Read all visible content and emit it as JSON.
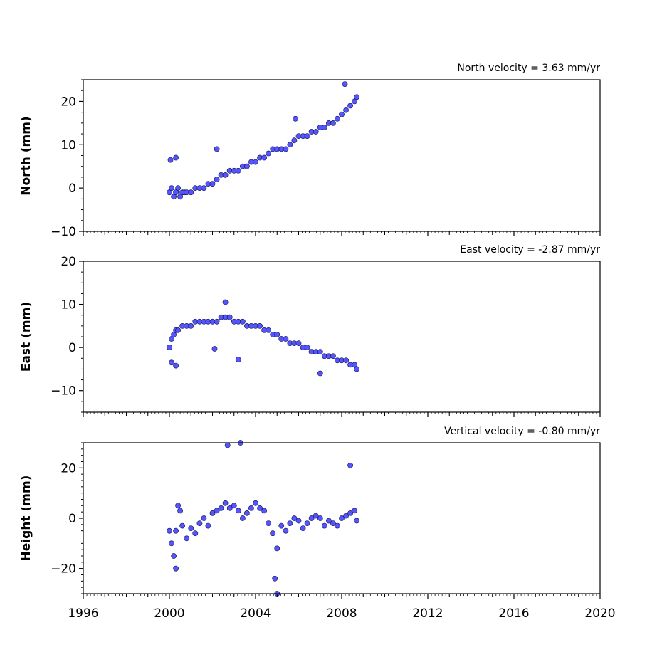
{
  "chart_data": [
    {
      "type": "scatter",
      "title": "North velocity = 3.63 mm/yr",
      "ylabel": "North (mm)",
      "xlabel": "",
      "xlim": [
        1996,
        2020
      ],
      "ylim": [
        -10,
        25
      ],
      "x_ticks": [
        1996,
        2000,
        2004,
        2008,
        2012,
        2016,
        2020
      ],
      "y_ticks": [
        -10,
        0,
        10,
        20
      ],
      "point_color": "#5555ff",
      "series": [
        {
          "x": [
            2000.0,
            2000.1,
            2000.2,
            2000.3,
            2000.4,
            2000.5,
            2000.6,
            2000.7,
            2000.8,
            2001.0,
            2001.2,
            2001.4,
            2001.6,
            2001.8,
            2002.0,
            2002.2,
            2002.4,
            2002.6,
            2002.8,
            2003.0,
            2003.2,
            2003.4,
            2003.6,
            2003.8,
            2004.0,
            2004.2,
            2004.4,
            2004.6,
            2004.8,
            2005.0,
            2005.2,
            2005.4,
            2005.6,
            2005.8,
            2006.0,
            2006.2,
            2006.4,
            2006.6,
            2006.8,
            2007.0,
            2007.2,
            2007.4,
            2007.6,
            2007.8,
            2008.0,
            2008.2,
            2008.4,
            2008.6,
            2008.7,
            2000.05,
            2000.3,
            2002.2,
            2008.15,
            2005.85
          ],
          "y": [
            -1,
            0,
            -2,
            -1,
            0,
            -2,
            -1,
            -1,
            -1,
            -1,
            0,
            0,
            0,
            1,
            1,
            2,
            3,
            3,
            4,
            4,
            4,
            5,
            5,
            6,
            6,
            7,
            7,
            8,
            9,
            9,
            9,
            9,
            10,
            11,
            12,
            12,
            12,
            13,
            13,
            14,
            14,
            15,
            15,
            16,
            17,
            18,
            19,
            20,
            21,
            6.5,
            7,
            9,
            24,
            16
          ]
        }
      ]
    },
    {
      "type": "scatter",
      "title": "East velocity = -2.87 mm/yr",
      "ylabel": "East (mm)",
      "xlabel": "",
      "xlim": [
        1996,
        2020
      ],
      "ylim": [
        -15,
        20
      ],
      "x_ticks": [
        1996,
        2000,
        2004,
        2008,
        2012,
        2016,
        2020
      ],
      "y_ticks": [
        -10,
        0,
        10,
        20
      ],
      "point_color": "#5555ff",
      "series": [
        {
          "x": [
            2000.0,
            2000.1,
            2000.2,
            2000.3,
            2000.4,
            2000.6,
            2000.8,
            2001.0,
            2001.2,
            2001.4,
            2001.6,
            2001.8,
            2002.0,
            2002.2,
            2002.4,
            2002.6,
            2002.8,
            2003.0,
            2003.2,
            2003.4,
            2003.6,
            2003.8,
            2004.0,
            2004.2,
            2004.4,
            2004.6,
            2004.8,
            2005.0,
            2005.2,
            2005.4,
            2005.6,
            2005.8,
            2006.0,
            2006.2,
            2006.4,
            2006.6,
            2006.8,
            2007.0,
            2007.2,
            2007.4,
            2007.6,
            2007.8,
            2008.0,
            2008.2,
            2008.4,
            2008.6,
            2008.7,
            2000.1,
            2000.3,
            2002.1,
            2003.2,
            2007.0,
            2002.6
          ],
          "y": [
            0,
            2,
            3,
            4,
            4,
            5,
            5,
            5,
            6,
            6,
            6,
            6,
            6,
            6,
            7,
            7,
            7,
            6,
            6,
            6,
            5,
            5,
            5,
            5,
            4,
            4,
            3,
            3,
            2,
            2,
            1,
            1,
            1,
            0,
            0,
            -1,
            -1,
            -1,
            -2,
            -2,
            -2,
            -3,
            -3,
            -3,
            -4,
            -4,
            -5,
            -3.5,
            -4.2,
            -0.3,
            -2.8,
            -6,
            10.5
          ]
        }
      ]
    },
    {
      "type": "scatter",
      "title": "Vertical velocity = -0.80 mm/yr",
      "ylabel": "Height (mm)",
      "xlabel": "",
      "xlim": [
        1996,
        2020
      ],
      "ylim": [
        -30,
        30
      ],
      "x_ticks": [
        1996,
        2000,
        2004,
        2008,
        2012,
        2016,
        2020
      ],
      "y_ticks": [
        -20,
        0,
        20
      ],
      "point_color": "#5555ff",
      "series": [
        {
          "x": [
            2000.0,
            2000.1,
            2000.2,
            2000.3,
            2000.4,
            2000.5,
            2000.6,
            2000.8,
            2001.0,
            2001.2,
            2001.4,
            2001.6,
            2001.8,
            2002.0,
            2002.2,
            2002.4,
            2002.6,
            2002.8,
            2003.0,
            2003.2,
            2003.4,
            2003.6,
            2003.8,
            2004.0,
            2004.2,
            2004.4,
            2004.6,
            2004.8,
            2005.0,
            2005.2,
            2005.4,
            2005.6,
            2005.8,
            2006.0,
            2006.2,
            2006.4,
            2006.6,
            2006.8,
            2007.0,
            2007.2,
            2007.4,
            2007.6,
            2007.8,
            2008.0,
            2008.2,
            2008.4,
            2008.6,
            2008.7,
            2002.7,
            2003.3,
            2005.0,
            2004.9,
            2000.3,
            2008.4
          ],
          "y": [
            -5,
            -10,
            -15,
            -5,
            5,
            3,
            -3,
            -8,
            -4,
            -6,
            -2,
            0,
            -3,
            2,
            3,
            4,
            6,
            4,
            5,
            3,
            0,
            2,
            4,
            6,
            4,
            3,
            -2,
            -6,
            -12,
            -3,
            -5,
            -2,
            0,
            -1,
            -4,
            -2,
            0,
            1,
            0,
            -3,
            -1,
            -2,
            -3,
            0,
            1,
            2,
            3,
            -1,
            29,
            30,
            -30,
            -24,
            -20,
            21
          ]
        }
      ]
    }
  ]
}
